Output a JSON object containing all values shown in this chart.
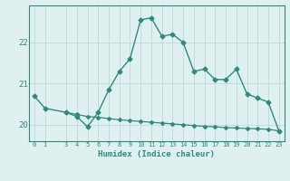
{
  "xlabel": "Humidex (Indice chaleur)",
  "background_color": "#dff0f0",
  "grid_color": "#c2dcdc",
  "line_color": "#2e8b7a",
  "x_main": [
    0,
    1,
    3,
    4,
    5,
    6,
    7,
    8,
    9,
    10,
    11,
    12,
    13,
    14,
    15,
    16,
    17,
    18,
    19,
    20,
    21,
    22,
    23
  ],
  "y_main": [
    20.7,
    20.4,
    20.3,
    20.2,
    19.95,
    20.3,
    20.85,
    21.3,
    21.6,
    22.55,
    22.6,
    22.15,
    22.2,
    22.0,
    21.3,
    21.35,
    21.1,
    21.1,
    21.35,
    20.75,
    20.65,
    20.55,
    19.85
  ],
  "x_flat": [
    3,
    4,
    5,
    6,
    7,
    8,
    9,
    10,
    11,
    12,
    13,
    14,
    15,
    16,
    17,
    18,
    19,
    20,
    21,
    22,
    23
  ],
  "y_flat": [
    20.3,
    20.25,
    20.2,
    20.18,
    20.15,
    20.12,
    20.1,
    20.08,
    20.06,
    20.04,
    20.02,
    20.0,
    19.98,
    19.96,
    19.95,
    19.93,
    19.92,
    19.91,
    19.9,
    19.89,
    19.85
  ],
  "ylim": [
    19.6,
    22.9
  ],
  "yticks": [
    20,
    21,
    22
  ],
  "xticks": [
    0,
    1,
    3,
    4,
    5,
    6,
    7,
    8,
    9,
    10,
    11,
    12,
    13,
    14,
    15,
    16,
    17,
    18,
    19,
    20,
    21,
    22,
    23
  ]
}
